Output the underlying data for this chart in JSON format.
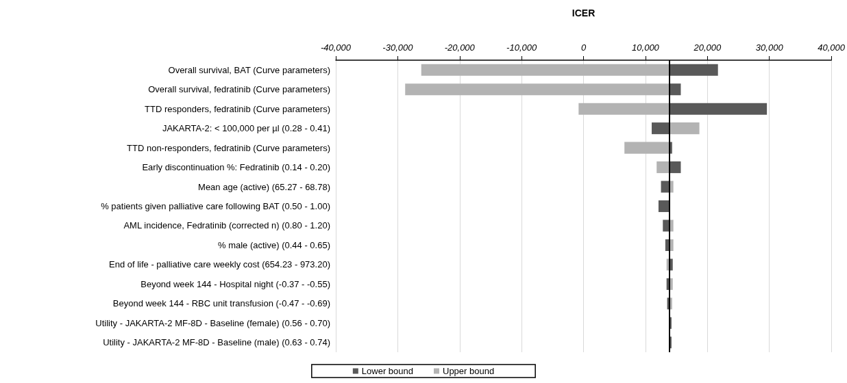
{
  "chart_data": {
    "type": "bar",
    "orientation": "horizontal",
    "xlabel": "ICER",
    "categories": [
      "Overall survival, BAT (Curve parameters)",
      "Overall survival, fedratinib (Curve parameters)",
      "TTD responders, fedratinib (Curve parameters)",
      "JAKARTA-2: < 100,000 per µl (0.28 - 0.41)",
      "TTD non-responders, fedratinib (Curve parameters)",
      "Early discontinuation %: Fedratinib (0.14 - 0.20)",
      "Mean age (active) (65.27 - 68.78)",
      "% patients given palliative care following BAT (0.50 - 1.00)",
      "AML incidence, Fedratinib (corrected n) (0.80 - 1.20)",
      "% male (active) (0.44 - 0.65)",
      "End of life - palliative care weekly cost (654.23 - 973.20)",
      "Beyond week 144 - Hospital night (-0.37 - -0.55)",
      "Beyond week 144 - RBC unit transfusion (-0.47 - -0.69)",
      "Utility - JAKARTA-2 MF-8D - Baseline (female) (0.56 - 0.70)",
      "Utility - JAKARTA-2 MF-8D - Baseline (male) (0.63 - 0.74)"
    ],
    "series": [
      {
        "name": "Lower bound",
        "color": "#595959",
        "base": [
          13900,
          13900,
          13900,
          13900,
          13900,
          13900,
          13900,
          13900,
          13900,
          13900,
          13900,
          13900,
          13900,
          13900,
          13900
        ],
        "values": [
          7800,
          1800,
          15700,
          -2900,
          400,
          1800,
          -1400,
          -1800,
          -1100,
          -700,
          500,
          -500,
          -400,
          300,
          300
        ]
      },
      {
        "name": "Upper bound",
        "color": "#b3b3b3",
        "base": [
          13900,
          13900,
          13900,
          13900,
          13900,
          13900,
          13900,
          null,
          13900,
          13900,
          13900,
          13900,
          13900,
          null,
          null
        ],
        "values": [
          -40100,
          -42700,
          -14700,
          4800,
          -7300,
          -2100,
          600,
          null,
          600,
          600,
          -500,
          500,
          400,
          null,
          null
        ]
      }
    ],
    "xlim": [
      -40000,
      40000
    ],
    "xticks": [
      {
        "value": -40000,
        "label": "-40,000"
      },
      {
        "value": -30000,
        "label": "-30,000"
      },
      {
        "value": -20000,
        "label": "-20,000"
      },
      {
        "value": -10000,
        "label": "-10,000"
      },
      0,
      {
        "value": 10000,
        "label": "10,000"
      },
      {
        "value": 20000,
        "label": "20,000"
      },
      {
        "value": 30000,
        "label": "30,000"
      },
      {
        "value": 40000,
        "label": "40,000"
      }
    ],
    "ref_lines": [
      {
        "axis": "x",
        "value": 13900,
        "color": "#000000"
      }
    ],
    "grid": "x",
    "legend": "bottom"
  }
}
